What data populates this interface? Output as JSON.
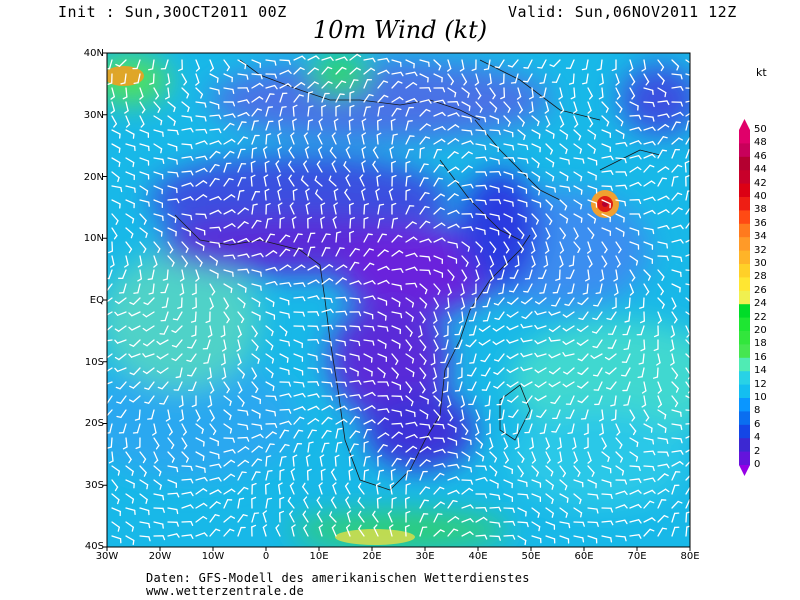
{
  "header": {
    "init": "Init : Sun,30OCT2011 00Z",
    "valid": "Valid: Sun,06NOV2011 12Z",
    "title": "10m Wind (kt)"
  },
  "map": {
    "latitude_labels": [
      "40N",
      "30N",
      "20N",
      "10N",
      "EQ",
      "10S",
      "20S",
      "30S",
      "40S"
    ],
    "longitude_labels": [
      "30W",
      "20W",
      "10W",
      "0",
      "10E",
      "20E",
      "30E",
      "40E",
      "50E",
      "60E",
      "70E",
      "80E"
    ],
    "lat_range": [
      -40,
      40
    ],
    "lon_range": [
      -30,
      80
    ]
  },
  "colorbar": {
    "unit": "kt",
    "levels": [
      "50",
      "48",
      "46",
      "44",
      "42",
      "40",
      "38",
      "36",
      "34",
      "32",
      "30",
      "28",
      "26",
      "24",
      "22",
      "20",
      "18",
      "16",
      "14",
      "12",
      "10",
      "8",
      "6",
      "4",
      "2",
      "0"
    ],
    "colors": [
      "#e0006a",
      "#c8005a",
      "#b40030",
      "#c8002a",
      "#dc0014",
      "#ee1e14",
      "#ff4a14",
      "#ff7a1e",
      "#ff9a28",
      "#ffb428",
      "#ffd028",
      "#ffe632",
      "#f0f050",
      "#00dc28",
      "#1ee632",
      "#32e63c",
      "#46e650",
      "#50ebb4",
      "#28d2e6",
      "#14bef0",
      "#0a96ff",
      "#0a6ef0",
      "#1446e6",
      "#3c28d2",
      "#6414dc",
      "#9600e6"
    ]
  },
  "credits": {
    "line1": "Daten: GFS-Modell des amerikanischen Wetterdienstes",
    "line2": "www.wetterzentrale.de"
  }
}
